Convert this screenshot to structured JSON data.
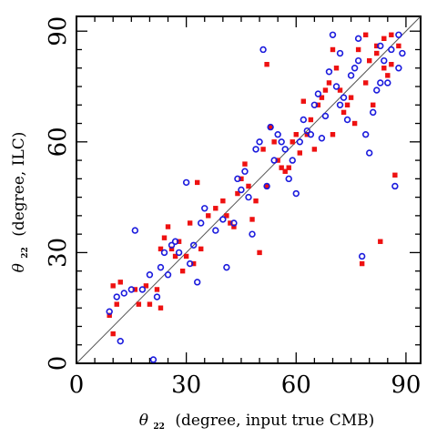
{
  "chart_data": {
    "type": "scatter",
    "title": "",
    "xlabel": {
      "symbol": "θ",
      "subscript": "22",
      "text": "(degree, input true CMB)"
    },
    "ylabel": {
      "symbol": "θ",
      "subscript": "22",
      "text": "(degree, ILC)"
    },
    "xlim": [
      0,
      94
    ],
    "ylim": [
      0,
      94
    ],
    "x_ticks": [
      0,
      30,
      60,
      90
    ],
    "y_ticks": [
      0,
      30,
      60,
      90
    ],
    "x_tick_labels": [
      "0",
      "30",
      "60",
      "90"
    ],
    "y_tick_labels": [
      "0",
      "30",
      "60",
      "90"
    ],
    "reference_line": "y = x",
    "grid": false,
    "legend": "none",
    "series": [
      {
        "color": "#ee1111",
        "marker": "filled-square",
        "points": [
          [
            9,
            13
          ],
          [
            10,
            21
          ],
          [
            11,
            16
          ],
          [
            12,
            22
          ],
          [
            10,
            8
          ],
          [
            16,
            20
          ],
          [
            17,
            16
          ],
          [
            19,
            21
          ],
          [
            20,
            16
          ],
          [
            22,
            20
          ],
          [
            23,
            15
          ],
          [
            23,
            31
          ],
          [
            24,
            34
          ],
          [
            25,
            37
          ],
          [
            26,
            31
          ],
          [
            27,
            29
          ],
          [
            28,
            33
          ],
          [
            29,
            25
          ],
          [
            30,
            29
          ],
          [
            31,
            38
          ],
          [
            32,
            27
          ],
          [
            33,
            49
          ],
          [
            34,
            31
          ],
          [
            36,
            40
          ],
          [
            38,
            42
          ],
          [
            40,
            44
          ],
          [
            41,
            40
          ],
          [
            42,
            38
          ],
          [
            43,
            37
          ],
          [
            44,
            46
          ],
          [
            45,
            50
          ],
          [
            46,
            54
          ],
          [
            47,
            48
          ],
          [
            48,
            39
          ],
          [
            49,
            44
          ],
          [
            50,
            30
          ],
          [
            51,
            58
          ],
          [
            52,
            48
          ],
          [
            52,
            81
          ],
          [
            53,
            64
          ],
          [
            54,
            60
          ],
          [
            55,
            55
          ],
          [
            56,
            53
          ],
          [
            57,
            52
          ],
          [
            58,
            53
          ],
          [
            59,
            60
          ],
          [
            60,
            62
          ],
          [
            61,
            57
          ],
          [
            62,
            71
          ],
          [
            63,
            62
          ],
          [
            64,
            66
          ],
          [
            65,
            58
          ],
          [
            66,
            70
          ],
          [
            67,
            72
          ],
          [
            68,
            74
          ],
          [
            69,
            76
          ],
          [
            70,
            62
          ],
          [
            70,
            85
          ],
          [
            71,
            80
          ],
          [
            72,
            74
          ],
          [
            73,
            68
          ],
          [
            74,
            70
          ],
          [
            75,
            72
          ],
          [
            76,
            65
          ],
          [
            77,
            85
          ],
          [
            78,
            27
          ],
          [
            79,
            76
          ],
          [
            80,
            82
          ],
          [
            81,
            70
          ],
          [
            82,
            84
          ],
          [
            83,
            33
          ],
          [
            84,
            88
          ],
          [
            85,
            78
          ],
          [
            86,
            89
          ],
          [
            87,
            51
          ],
          [
            86,
            81
          ],
          [
            84,
            80
          ],
          [
            88,
            86
          ],
          [
            82,
            86
          ],
          [
            79,
            89
          ]
        ]
      },
      {
        "color": "#1b1bdd",
        "marker": "open-circle",
        "points": [
          [
            9,
            14
          ],
          [
            11,
            18
          ],
          [
            12,
            6
          ],
          [
            13,
            19
          ],
          [
            15,
            20
          ],
          [
            16,
            36
          ],
          [
            18,
            20
          ],
          [
            20,
            24
          ],
          [
            21,
            1
          ],
          [
            22,
            18
          ],
          [
            23,
            26
          ],
          [
            24,
            30
          ],
          [
            25,
            24
          ],
          [
            26,
            32
          ],
          [
            27,
            33
          ],
          [
            28,
            30
          ],
          [
            30,
            49
          ],
          [
            31,
            27
          ],
          [
            32,
            32
          ],
          [
            33,
            22
          ],
          [
            34,
            38
          ],
          [
            35,
            42
          ],
          [
            38,
            36
          ],
          [
            40,
            39
          ],
          [
            41,
            26
          ],
          [
            43,
            38
          ],
          [
            44,
            50
          ],
          [
            45,
            47
          ],
          [
            46,
            52
          ],
          [
            47,
            45
          ],
          [
            48,
            35
          ],
          [
            49,
            58
          ],
          [
            50,
            60
          ],
          [
            51,
            85
          ],
          [
            52,
            48
          ],
          [
            53,
            64
          ],
          [
            54,
            55
          ],
          [
            55,
            62
          ],
          [
            56,
            60
          ],
          [
            57,
            58
          ],
          [
            58,
            50
          ],
          [
            59,
            55
          ],
          [
            60,
            46
          ],
          [
            61,
            60
          ],
          [
            62,
            66
          ],
          [
            63,
            63
          ],
          [
            64,
            62
          ],
          [
            65,
            70
          ],
          [
            66,
            73
          ],
          [
            67,
            61
          ],
          [
            68,
            67
          ],
          [
            69,
            79
          ],
          [
            70,
            89
          ],
          [
            71,
            75
          ],
          [
            72,
            70
          ],
          [
            73,
            72
          ],
          [
            74,
            66
          ],
          [
            75,
            78
          ],
          [
            76,
            80
          ],
          [
            77,
            82
          ],
          [
            78,
            29
          ],
          [
            79,
            62
          ],
          [
            80,
            57
          ],
          [
            81,
            68
          ],
          [
            82,
            74
          ],
          [
            83,
            86
          ],
          [
            84,
            82
          ],
          [
            85,
            76
          ],
          [
            86,
            85
          ],
          [
            87,
            48
          ],
          [
            88,
            89
          ],
          [
            89,
            84
          ],
          [
            88,
            80
          ],
          [
            83,
            76
          ],
          [
            77,
            88
          ],
          [
            72,
            84
          ]
        ]
      }
    ]
  }
}
